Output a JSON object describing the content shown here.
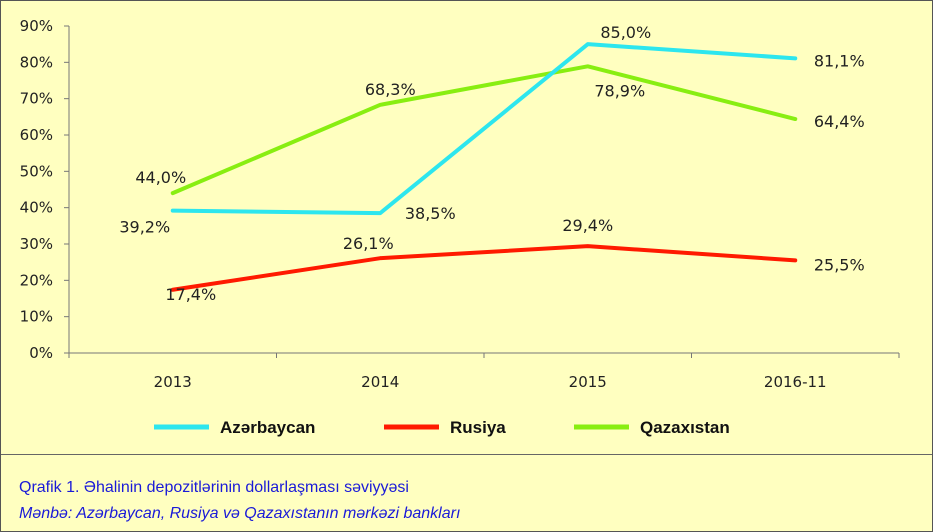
{
  "chart_data": {
    "type": "line",
    "categories": [
      "2013",
      "2014",
      "2015",
      "2016-11"
    ],
    "y_ticks": [
      "0%",
      "10%",
      "20%",
      "30%",
      "40%",
      "50%",
      "60%",
      "70%",
      "80%",
      "90%"
    ],
    "ylim": [
      0,
      90
    ],
    "grid": false,
    "legend_position": "bottom",
    "series": [
      {
        "name": "Azərbaycan",
        "color": "#2de6ee",
        "values": [
          39.2,
          38.5,
          85.0,
          81.1
        ],
        "labels": [
          "39,2%",
          "38,5%",
          "85,0%",
          "81,1%"
        ]
      },
      {
        "name": "Rusiya",
        "color": "#ff1a00",
        "values": [
          17.4,
          26.1,
          29.4,
          25.5
        ],
        "labels": [
          "17,4%",
          "26,1%",
          "29,4%",
          "25,5%"
        ]
      },
      {
        "name": "Qazaxıstan",
        "color": "#88ee11",
        "values": [
          44.0,
          68.3,
          78.9,
          64.4
        ],
        "labels": [
          "44,0%",
          "68,3%",
          "78,9%",
          "64,4%"
        ]
      }
    ]
  },
  "caption": {
    "title": "Qrafik 1. Əhalinin depozitlərinin dollarlaşması səviyyəsi",
    "source": "Mənbə: Azərbaycan, Rusiya və Qazaxıstanın mərkəzi bankları"
  }
}
